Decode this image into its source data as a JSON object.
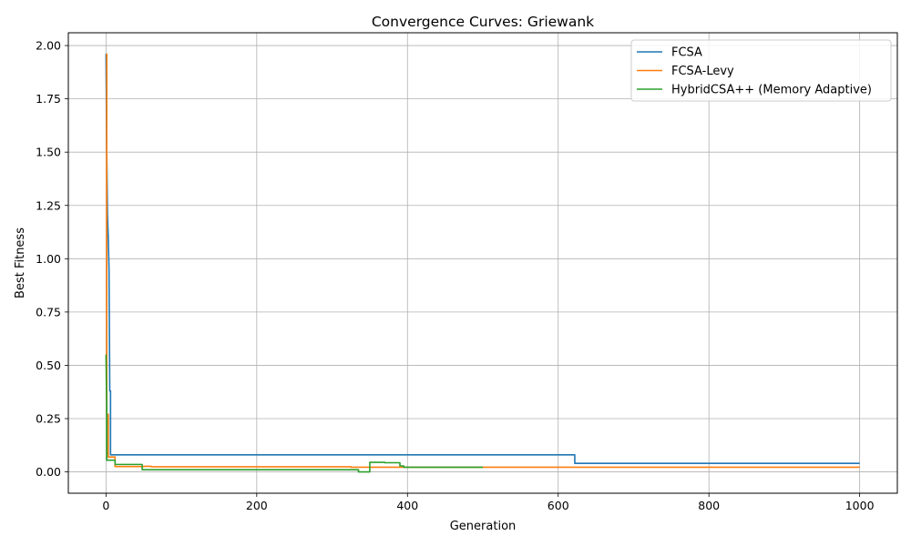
{
  "chart_data": {
    "type": "line",
    "title": "Convergence Curves: Griewank",
    "xlabel": "Generation",
    "ylabel": "Best Fitness",
    "xlim": [
      -50,
      1050
    ],
    "ylim": [
      -0.1,
      2.06
    ],
    "xticks": [
      0,
      200,
      400,
      600,
      800,
      1000
    ],
    "yticks": [
      0.0,
      0.25,
      0.5,
      0.75,
      1.0,
      1.25,
      1.5,
      1.75,
      2.0
    ],
    "xtick_labels": [
      "0",
      "200",
      "400",
      "600",
      "800",
      "1000"
    ],
    "ytick_labels": [
      "0.00",
      "0.25",
      "0.50",
      "0.75",
      "1.00",
      "1.25",
      "1.50",
      "1.75",
      "2.00"
    ],
    "grid": true,
    "legend_position": "top-right",
    "series": [
      {
        "name": "FCSA",
        "color": "#1f77b4",
        "x": [
          0,
          1,
          2,
          3,
          4,
          5,
          6,
          6,
          622,
          622,
          1000
        ],
        "y": [
          1.96,
          1.5,
          1.2,
          1.1,
          0.95,
          0.38,
          0.38,
          0.08,
          0.08,
          0.04,
          0.04
        ]
      },
      {
        "name": "FCSA-Levy",
        "color": "#ff7f0e",
        "x": [
          0,
          1,
          1,
          3,
          3,
          12,
          12,
          50,
          50,
          60,
          60,
          325,
          325,
          500,
          1000
        ],
        "y": [
          1.96,
          1.96,
          0.27,
          0.27,
          0.07,
          0.07,
          0.025,
          0.025,
          0.026,
          0.026,
          0.024,
          0.024,
          0.022,
          0.022,
          0.022
        ]
      },
      {
        "name": "HybridCSA++ (Memory Adaptive)",
        "color": "#2ca02c",
        "x": [
          0,
          1,
          1,
          12,
          12,
          48,
          48,
          335,
          335,
          350,
          350,
          370,
          370,
          390,
          390,
          395,
          395,
          500
        ],
        "y": [
          0.55,
          0.3,
          0.055,
          0.055,
          0.035,
          0.035,
          0.01,
          0.01,
          0.0,
          0.0,
          0.045,
          0.045,
          0.043,
          0.043,
          0.028,
          0.028,
          0.022,
          0.022
        ]
      }
    ]
  }
}
